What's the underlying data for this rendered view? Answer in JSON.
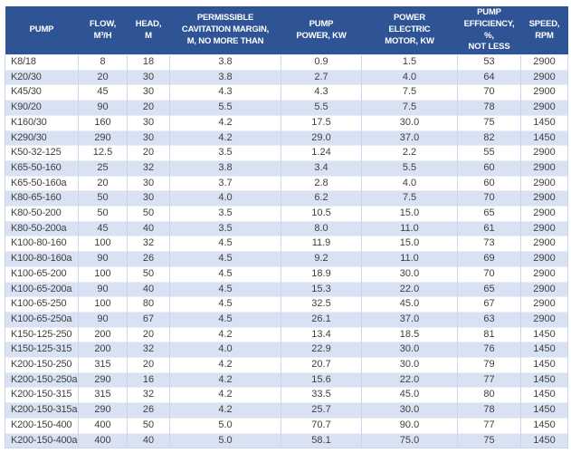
{
  "colors": {
    "header_bg": "#2F5496",
    "header_text": "#FFFFFF",
    "band_bg": "#D9E2F3",
    "cell_text": "#3F3F3F",
    "gridline": "#CBD5EB"
  },
  "table": {
    "columns": [
      {
        "key": "pump",
        "label": "PUMP"
      },
      {
        "key": "flow",
        "label": "FLOW,\nM³/H"
      },
      {
        "key": "head",
        "label": "HEAD,\nM"
      },
      {
        "key": "cavitation",
        "label": "PERMISSIBLE\nCAVITATION MARGIN,\nM, NO MORE THAN"
      },
      {
        "key": "power",
        "label": "PUMP\nPOWER, KW"
      },
      {
        "key": "motor",
        "label": "POWER\nELECTRIC\nMOTOR, KW"
      },
      {
        "key": "efficiency",
        "label": "PUMP\nEFFICIENCY, %,\nNOT LESS"
      },
      {
        "key": "speed",
        "label": "SPEED,\nRPM"
      }
    ],
    "rows": [
      {
        "pump": "K8/18",
        "flow": "8",
        "head": "18",
        "cavitation": "3.8",
        "power": "0.9",
        "motor": "1.5",
        "efficiency": "53",
        "speed": "2900"
      },
      {
        "pump": "K20/30",
        "flow": "20",
        "head": "30",
        "cavitation": "3.8",
        "power": "2.7",
        "motor": "4.0",
        "efficiency": "64",
        "speed": "2900"
      },
      {
        "pump": "K45/30",
        "flow": "45",
        "head": "30",
        "cavitation": "4.3",
        "power": "4.3",
        "motor": "7.5",
        "efficiency": "70",
        "speed": "2900"
      },
      {
        "pump": "K90/20",
        "flow": "90",
        "head": "20",
        "cavitation": "5.5",
        "power": "5.5",
        "motor": "7.5",
        "efficiency": "78",
        "speed": "2900"
      },
      {
        "pump": "K160/30",
        "flow": "160",
        "head": "30",
        "cavitation": "4.2",
        "power": "17.5",
        "motor": "30.0",
        "efficiency": "75",
        "speed": "1450"
      },
      {
        "pump": "K290/30",
        "flow": "290",
        "head": "30",
        "cavitation": "4.2",
        "power": "29.0",
        "motor": "37.0",
        "efficiency": "82",
        "speed": "1450"
      },
      {
        "pump": "K50-32-125",
        "flow": "12.5",
        "head": "20",
        "cavitation": "3.5",
        "power": "1.24",
        "motor": "2.2",
        "efficiency": "55",
        "speed": "2900"
      },
      {
        "pump": "K65-50-160",
        "flow": "25",
        "head": "32",
        "cavitation": "3.8",
        "power": "3.4",
        "motor": "5.5",
        "efficiency": "60",
        "speed": "2900"
      },
      {
        "pump": "K65-50-160a",
        "flow": "20",
        "head": "30",
        "cavitation": "3.7",
        "power": "2.8",
        "motor": "4.0",
        "efficiency": "60",
        "speed": "2900"
      },
      {
        "pump": "K80-65-160",
        "flow": "50",
        "head": "30",
        "cavitation": "4.0",
        "power": "6.2",
        "motor": "7.5",
        "efficiency": "70",
        "speed": "2900"
      },
      {
        "pump": "K80-50-200",
        "flow": "50",
        "head": "50",
        "cavitation": "3.5",
        "power": "10.5",
        "motor": "15.0",
        "efficiency": "65",
        "speed": "2900"
      },
      {
        "pump": "K80-50-200a",
        "flow": "45",
        "head": "40",
        "cavitation": "3.5",
        "power": "8.0",
        "motor": "11.0",
        "efficiency": "61",
        "speed": "2900"
      },
      {
        "pump": "K100-80-160",
        "flow": "100",
        "head": "32",
        "cavitation": "4.5",
        "power": "11.9",
        "motor": "15.0",
        "efficiency": "73",
        "speed": "2900"
      },
      {
        "pump": "K100-80-160a",
        "flow": "90",
        "head": "26",
        "cavitation": "4.5",
        "power": "9.2",
        "motor": "11.0",
        "efficiency": "69",
        "speed": "2900"
      },
      {
        "pump": "K100-65-200",
        "flow": "100",
        "head": "50",
        "cavitation": "4.5",
        "power": "18.9",
        "motor": "30.0",
        "efficiency": "70",
        "speed": "2900"
      },
      {
        "pump": "K100-65-200a",
        "flow": "90",
        "head": "40",
        "cavitation": "4.5",
        "power": "15.3",
        "motor": "22.0",
        "efficiency": "65",
        "speed": "2900"
      },
      {
        "pump": "K100-65-250",
        "flow": "100",
        "head": "80",
        "cavitation": "4.5",
        "power": "32.5",
        "motor": "45.0",
        "efficiency": "67",
        "speed": "2900"
      },
      {
        "pump": "K100-65-250a",
        "flow": "90",
        "head": "67",
        "cavitation": "4.5",
        "power": "26.1",
        "motor": "37.0",
        "efficiency": "63",
        "speed": "2900"
      },
      {
        "pump": "K150-125-250",
        "flow": "200",
        "head": "20",
        "cavitation": "4.2",
        "power": "13.4",
        "motor": "18.5",
        "efficiency": "81",
        "speed": "1450"
      },
      {
        "pump": "K150-125-315",
        "flow": "200",
        "head": "32",
        "cavitation": "4.0",
        "power": "22.9",
        "motor": "30.0",
        "efficiency": "76",
        "speed": "1450"
      },
      {
        "pump": "K200-150-250",
        "flow": "315",
        "head": "20",
        "cavitation": "4.2",
        "power": "20.7",
        "motor": "30.0",
        "efficiency": "79",
        "speed": "1450"
      },
      {
        "pump": "K200-150-250a",
        "flow": "290",
        "head": "16",
        "cavitation": "4.2",
        "power": "15.6",
        "motor": "22.0",
        "efficiency": "77",
        "speed": "1450"
      },
      {
        "pump": "K200-150-315",
        "flow": "315",
        "head": "32",
        "cavitation": "4.2",
        "power": "33.5",
        "motor": "45.0",
        "efficiency": "80",
        "speed": "1450"
      },
      {
        "pump": "K200-150-315a",
        "flow": "290",
        "head": "26",
        "cavitation": "4.2",
        "power": "25.7",
        "motor": "30.0",
        "efficiency": "78",
        "speed": "1450"
      },
      {
        "pump": "K200-150-400",
        "flow": "400",
        "head": "50",
        "cavitation": "5.0",
        "power": "70.7",
        "motor": "90.0",
        "efficiency": "77",
        "speed": "1450"
      },
      {
        "pump": "K200-150-400a",
        "flow": "400",
        "head": "40",
        "cavitation": "5.0",
        "power": "58.1",
        "motor": "75.0",
        "efficiency": "75",
        "speed": "1450"
      }
    ]
  }
}
